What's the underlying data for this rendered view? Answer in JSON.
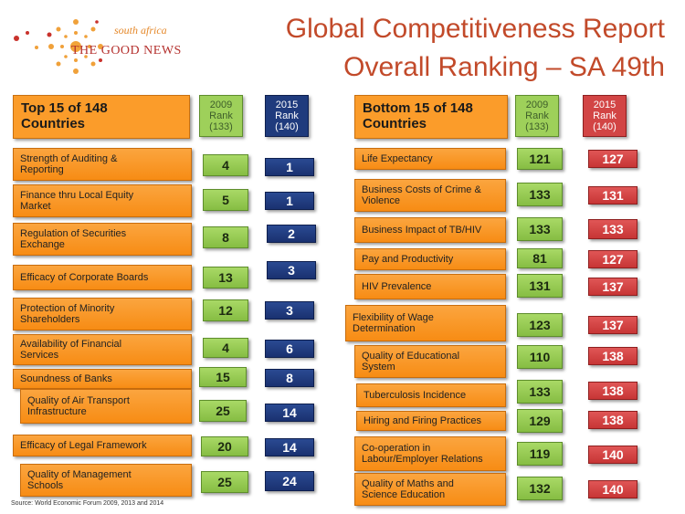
{
  "logo": {
    "line1": "south africa",
    "line2": "THE GOOD NEWS"
  },
  "title": {
    "line1": "Global Competitiveness Report",
    "line2": "Overall Ranking – SA 49th"
  },
  "top": {
    "heading": "Top 15 of 148\nCountries",
    "rank2009": "2009\nRank\n(133)",
    "rank2015": "2015\nRank\n(140)",
    "rows": [
      {
        "label": "Strength of Auditing &\nReporting",
        "r2009": "4",
        "r2015": "1"
      },
      {
        "label": "Finance thru Local Equity\nMarket",
        "r2009": "5",
        "r2015": "1"
      },
      {
        "label": "Regulation of Securities\nExchange",
        "r2009": "8",
        "r2015": "2"
      },
      {
        "label": "Efficacy of Corporate Boards",
        "r2009": "13",
        "r2015": "3"
      },
      {
        "label": "Protection of Minority\nShareholders",
        "r2009": "12",
        "r2015": "3"
      },
      {
        "label": "Availability of Financial\nServices",
        "r2009": "4",
        "r2015": "6"
      },
      {
        "label": "Soundness of Banks",
        "r2009": "15",
        "r2015": "8"
      },
      {
        "label": "Quality of Air Transport\nInfrastructure",
        "r2009": "25",
        "r2015": "14"
      },
      {
        "label": "Efficacy of Legal Framework",
        "r2009": "20",
        "r2015": "14"
      },
      {
        "label": "Quality of Management\nSchools",
        "r2009": "25",
        "r2015": "24"
      }
    ]
  },
  "bottom": {
    "heading": "Bottom 15 of 148\nCountries",
    "rank2009": "2009\nRank\n(133)",
    "rank2015": "2015\nRank\n(140)",
    "rows": [
      {
        "label": "Life Expectancy",
        "r2009": "121",
        "r2015": "127"
      },
      {
        "label": "Business Costs of Crime &\nViolence",
        "r2009": "133",
        "r2015": "131"
      },
      {
        "label": "Business Impact of TB/HIV",
        "r2009": "133",
        "r2015": "133"
      },
      {
        "label": "Pay and Productivity",
        "r2009": "81",
        "r2015": "127"
      },
      {
        "label": "HIV Prevalence",
        "r2009": "131",
        "r2015": "137"
      },
      {
        "label": "Flexibility of Wage\nDetermination",
        "r2009": "123",
        "r2015": "137"
      },
      {
        "label": "Quality of Educational\nSystem",
        "r2009": "110",
        "r2015": "138"
      },
      {
        "label": "Tuberculosis Incidence",
        "r2009": "133",
        "r2015": "138"
      },
      {
        "label": "Hiring and Firing Practices",
        "r2009": "129",
        "r2015": "138"
      },
      {
        "label": "Co-operation in\nLabour/Employer Relations",
        "r2009": "119",
        "r2015": "140"
      },
      {
        "label": "Quality of Maths and\nScience Education",
        "r2009": "132",
        "r2015": "140"
      }
    ]
  },
  "source": "Source: World Economic Forum 2009, 2013 and 2014"
}
